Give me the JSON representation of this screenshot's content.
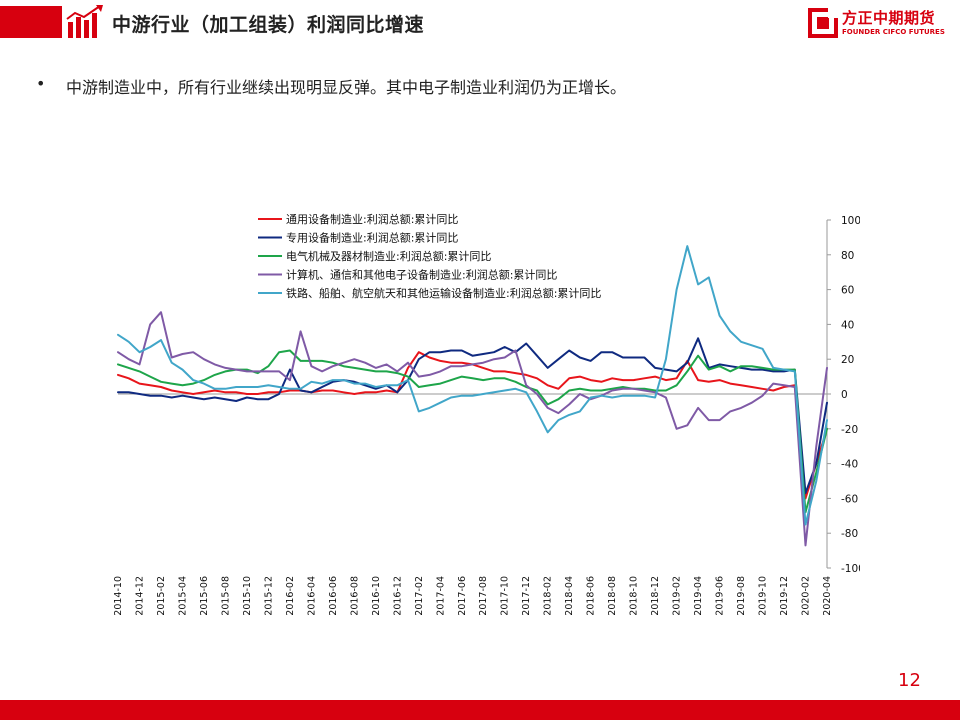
{
  "header": {
    "title": "中游行业（加工组装）利润同比增速",
    "logo_cn": "方正中期期货",
    "logo_en": "FOUNDER CIFCO FUTURES"
  },
  "bullet": {
    "marker": "•",
    "text": "中游制造业中，所有行业继续出现明显反弹。其中电子制造业利润仍为正增长。"
  },
  "page_number": "12",
  "colors": {
    "brand_red": "#d7000f"
  },
  "chart_data": {
    "type": "line",
    "x": [
      "2014-10",
      "2014-11",
      "2014-12",
      "2015-01",
      "2015-02",
      "2015-03",
      "2015-04",
      "2015-05",
      "2015-06",
      "2015-07",
      "2015-08",
      "2015-09",
      "2015-10",
      "2015-11",
      "2015-12",
      "2016-01",
      "2016-02",
      "2016-03",
      "2016-04",
      "2016-05",
      "2016-06",
      "2016-07",
      "2016-08",
      "2016-09",
      "2016-10",
      "2016-11",
      "2016-12",
      "2017-01",
      "2017-02",
      "2017-03",
      "2017-04",
      "2017-05",
      "2017-06",
      "2017-07",
      "2017-08",
      "2017-09",
      "2017-10",
      "2017-11",
      "2017-12",
      "2018-01",
      "2018-02",
      "2018-03",
      "2018-04",
      "2018-05",
      "2018-06",
      "2018-07",
      "2018-08",
      "2018-09",
      "2018-10",
      "2018-11",
      "2018-12",
      "2019-01",
      "2019-02",
      "2019-03",
      "2019-04",
      "2019-05",
      "2019-06",
      "2019-07",
      "2019-08",
      "2019-09",
      "2019-10",
      "2019-11",
      "2019-12",
      "2020-01",
      "2020-02",
      "2020-03",
      "2020-04"
    ],
    "x_tick_labels": [
      "2014-10",
      "2014-12",
      "2015-02",
      "2015-04",
      "2015-06",
      "2015-08",
      "2015-10",
      "2015-12",
      "2016-02",
      "2016-04",
      "2016-06",
      "2016-08",
      "2016-10",
      "2016-12",
      "2017-02",
      "2017-04",
      "2017-06",
      "2017-08",
      "2017-10",
      "2017-12",
      "2018-02",
      "2018-04",
      "2018-06",
      "2018-08",
      "2018-10",
      "2018-12",
      "2019-02",
      "2019-04",
      "2019-06",
      "2019-08",
      "2019-10",
      "2019-12",
      "2020-02",
      "2020-04"
    ],
    "y_ticks": [
      100,
      80,
      60,
      40,
      20,
      0,
      -20,
      -40,
      -60,
      -80,
      -100
    ],
    "ylim": [
      -100,
      100
    ],
    "y_axis_position": "right",
    "grid": false,
    "legend_position": "top-left",
    "series": [
      {
        "name": "通用设备制造业:利润总额:累计同比",
        "color": "#e8151b",
        "values": [
          11,
          9,
          6,
          5,
          4,
          2,
          1,
          0,
          1,
          2,
          1,
          1,
          0,
          0,
          1,
          1,
          2,
          2,
          1,
          2,
          2,
          1,
          0,
          1,
          1,
          2,
          1,
          15,
          24,
          21,
          19,
          18,
          18,
          17,
          15,
          13,
          13,
          12,
          11,
          9,
          5,
          3,
          9,
          10,
          8,
          7,
          9,
          8,
          8,
          9,
          10,
          8,
          9,
          19,
          8,
          7,
          8,
          6,
          5,
          4,
          3,
          2,
          4,
          5,
          -60,
          -40,
          -20
        ]
      },
      {
        "name": "专用设备制造业:利润总额:累计同比",
        "color": "#0f2a80",
        "values": [
          1,
          1,
          0,
          -1,
          -1,
          -2,
          -1,
          -2,
          -3,
          -2,
          -3,
          -4,
          -2,
          -3,
          -3,
          0,
          14,
          2,
          1,
          4,
          7,
          8,
          7,
          5,
          3,
          5,
          1,
          8,
          20,
          24,
          24,
          25,
          25,
          22,
          23,
          24,
          27,
          24,
          29,
          22,
          15,
          20,
          25,
          21,
          19,
          24,
          24,
          21,
          21,
          21,
          15,
          14,
          13,
          18,
          32,
          15,
          17,
          16,
          15,
          14,
          14,
          13,
          13,
          14,
          -57,
          -40,
          -5
        ]
      },
      {
        "name": "电气机械及器材制造业:利润总额:累计同比",
        "color": "#1ea54a",
        "values": [
          17,
          15,
          13,
          10,
          7,
          6,
          5,
          6,
          8,
          11,
          13,
          14,
          14,
          12,
          16,
          24,
          25,
          19,
          19,
          19,
          18,
          16,
          15,
          14,
          13,
          13,
          12,
          10,
          4,
          5,
          6,
          8,
          10,
          9,
          8,
          9,
          9,
          7,
          4,
          2,
          -6,
          -3,
          2,
          3,
          2,
          2,
          3,
          4,
          3,
          3,
          2,
          2,
          5,
          13,
          22,
          14,
          16,
          13,
          16,
          16,
          15,
          14,
          14,
          14,
          -68,
          -45,
          -20
        ]
      },
      {
        "name": "计算机、通信和其他电子设备制造业:利润总额:累计同比",
        "color": "#7f5aa6",
        "values": [
          24,
          20,
          17,
          40,
          47,
          21,
          23,
          24,
          20,
          17,
          15,
          14,
          13,
          13,
          13,
          13,
          8,
          36,
          16,
          13,
          16,
          18,
          20,
          18,
          15,
          17,
          13,
          18,
          10,
          11,
          13,
          16,
          16,
          17,
          18,
          20,
          21,
          25,
          5,
          0,
          -8,
          -11,
          -6,
          0,
          -3,
          -1,
          2,
          3,
          3,
          2,
          1,
          -2,
          -20,
          -18,
          -8,
          -15,
          -15,
          -10,
          -8,
          -5,
          -1,
          6,
          5,
          4,
          -87,
          -30,
          15
        ]
      },
      {
        "name": "铁路、船舶、航空航天和其他运输设备制造业:利润总额:累计同比",
        "color": "#41a6c9",
        "values": [
          34,
          30,
          24,
          27,
          31,
          18,
          14,
          8,
          6,
          3,
          3,
          4,
          4,
          4,
          5,
          4,
          3,
          3,
          7,
          6,
          8,
          8,
          6,
          6,
          4,
          5,
          5,
          8,
          -10,
          -8,
          -5,
          -2,
          -1,
          -1,
          0,
          1,
          2,
          3,
          1,
          -10,
          -22,
          -15,
          -12,
          -10,
          -2,
          -1,
          -2,
          -1,
          -1,
          -1,
          -2,
          20,
          60,
          85,
          63,
          67,
          45,
          36,
          30,
          28,
          26,
          15,
          14,
          13,
          -75,
          -50,
          -15
        ]
      }
    ]
  }
}
